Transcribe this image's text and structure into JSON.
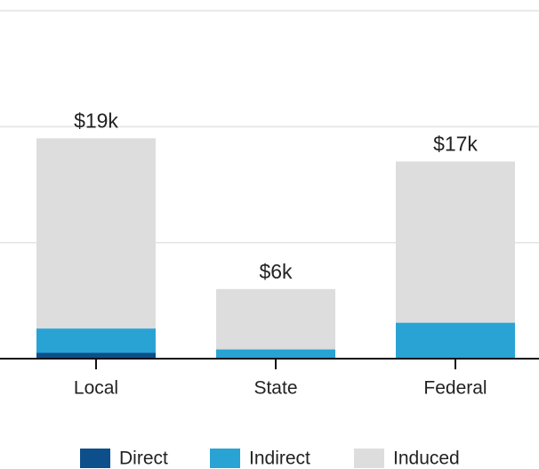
{
  "chart_data": {
    "type": "stacked_bar",
    "categories": [
      "Local",
      "State",
      "Federal"
    ],
    "series": [
      {
        "name": "Direct",
        "color": "#0d4f8b",
        "values": [
          500,
          0,
          0
        ]
      },
      {
        "name": "Indirect",
        "color": "#29a3d4",
        "values": [
          2100,
          800,
          3100
        ]
      },
      {
        "name": "Induced",
        "color": "#dddddd",
        "values": [
          16400,
          5200,
          13900
        ]
      }
    ],
    "totals": [
      19000,
      6000,
      17000
    ],
    "total_labels": [
      "$19k",
      "$6k",
      "$17k"
    ],
    "ylim": [
      0,
      30000
    ],
    "yticks": [
      10000,
      20000,
      30000
    ],
    "grid": true,
    "legend": "bottom"
  }
}
